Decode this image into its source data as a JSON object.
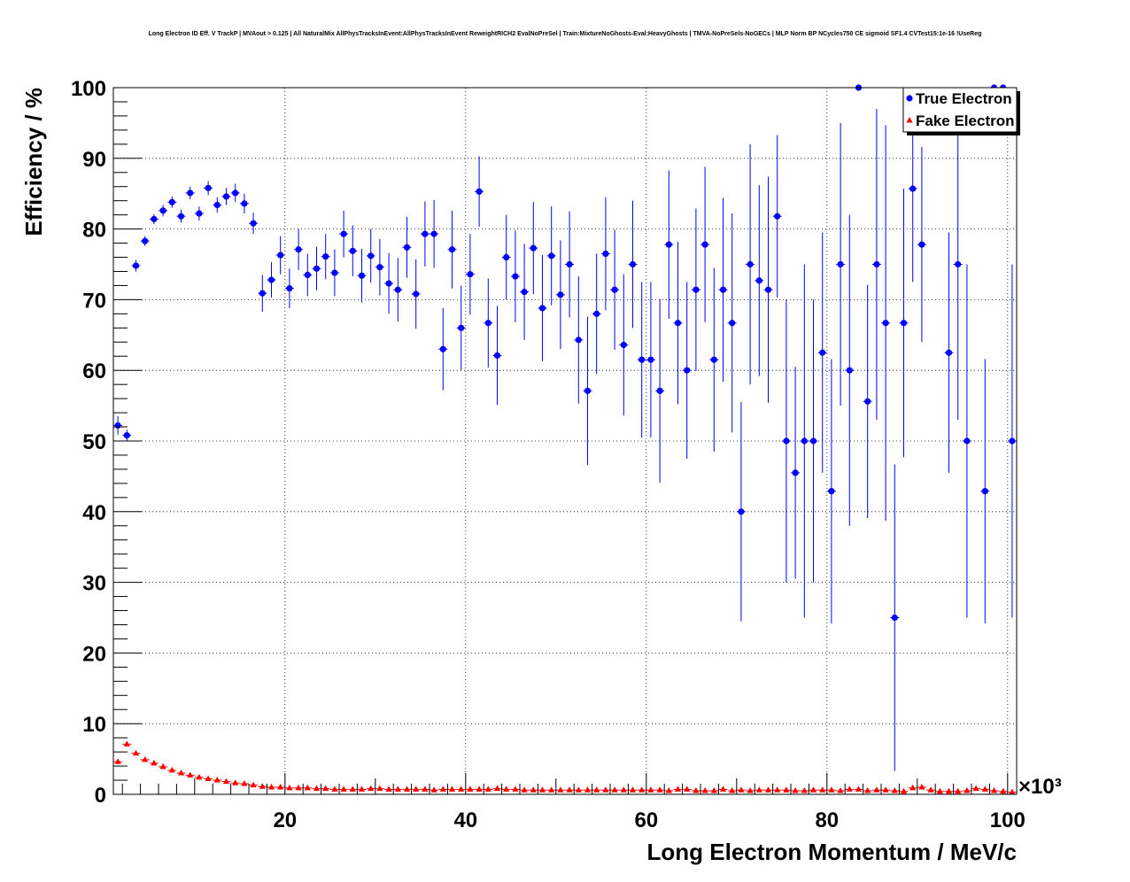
{
  "chart_data": {
    "type": "scatter",
    "title": "Long Electron ID Eff. V TrackP | MVAout > 0.125 | All NaturalMix AllPhysTracksInEvent:AllPhysTracksInEvent ReweightRICH2 EvalNoPreSel | Train:MixtureNoGhosts-Eval:HeavyGhosts | TMVA-NoPreSels-NoGECs | MLP Norm BP NCycles750 CE sigmoid SF1.4 CVTest15:1e-16 !UseReg",
    "xlabel": "Long Electron Momentum / MeV/c",
    "ylabel": "Efficiency / %",
    "x_multiplier": "×10³",
    "xlim": [
      1,
      101
    ],
    "ylim": [
      0,
      100
    ],
    "xticks": [
      20,
      40,
      60,
      80,
      100
    ],
    "yticks": [
      0,
      10,
      20,
      30,
      40,
      50,
      60,
      70,
      80,
      90,
      100
    ],
    "grid": true,
    "legend_position": "top-right",
    "series": [
      {
        "name": "True Electron",
        "color": "#0000ff",
        "marker": "circle",
        "points": [
          {
            "x": 1.5,
            "y": 52.2,
            "e": 1.3
          },
          {
            "x": 2.5,
            "y": 50.8,
            "e": 0.8
          },
          {
            "x": 3.5,
            "y": 74.8,
            "e": 0.8
          },
          {
            "x": 4.5,
            "y": 78.3,
            "e": 0.7
          },
          {
            "x": 5.5,
            "y": 81.4,
            "e": 0.7
          },
          {
            "x": 6.5,
            "y": 82.6,
            "e": 0.8
          },
          {
            "x": 7.5,
            "y": 83.8,
            "e": 0.8
          },
          {
            "x": 8.5,
            "y": 81.8,
            "e": 0.9
          },
          {
            "x": 9.5,
            "y": 85.1,
            "e": 0.9
          },
          {
            "x": 10.5,
            "y": 82.2,
            "e": 1.0
          },
          {
            "x": 11.5,
            "y": 85.8,
            "e": 1.0
          },
          {
            "x": 12.5,
            "y": 83.4,
            "e": 1.1
          },
          {
            "x": 13.5,
            "y": 84.6,
            "e": 1.2
          },
          {
            "x": 14.5,
            "y": 85.1,
            "e": 1.3
          },
          {
            "x": 15.5,
            "y": 83.6,
            "e": 1.4
          },
          {
            "x": 16.5,
            "y": 80.8,
            "e": 1.5
          },
          {
            "x": 17.5,
            "y": 70.9,
            "e": 2.6
          },
          {
            "x": 18.5,
            "y": 72.8,
            "e": 2.5
          },
          {
            "x": 19.5,
            "y": 76.3,
            "e": 2.7
          },
          {
            "x": 20.5,
            "y": 71.6,
            "e": 2.8
          },
          {
            "x": 21.5,
            "y": 77.1,
            "e": 2.9
          },
          {
            "x": 22.5,
            "y": 73.5,
            "e": 3.0
          },
          {
            "x": 23.5,
            "y": 74.4,
            "e": 3.1
          },
          {
            "x": 24.5,
            "y": 76.1,
            "e": 3.2
          },
          {
            "x": 25.5,
            "y": 73.8,
            "e": 3.3
          },
          {
            "x": 26.5,
            "y": 79.3,
            "e": 3.3
          },
          {
            "x": 27.5,
            "y": 76.9,
            "e": 3.6
          },
          {
            "x": 28.5,
            "y": 73.4,
            "e": 3.8
          },
          {
            "x": 29.5,
            "y": 76.2,
            "e": 3.8
          },
          {
            "x": 30.5,
            "y": 74.6,
            "e": 4.0
          },
          {
            "x": 31.5,
            "y": 72.3,
            "e": 4.3
          },
          {
            "x": 32.5,
            "y": 71.4,
            "e": 4.5
          },
          {
            "x": 33.5,
            "y": 77.4,
            "e": 4.3
          },
          {
            "x": 34.5,
            "y": 70.8,
            "e": 4.9
          },
          {
            "x": 35.5,
            "y": 79.3,
            "e": 4.6
          },
          {
            "x": 36.5,
            "y": 79.3,
            "e": 4.8
          },
          {
            "x": 37.5,
            "y": 63.0,
            "e": 5.8
          },
          {
            "x": 38.5,
            "y": 77.1,
            "e": 5.5
          },
          {
            "x": 39.5,
            "y": 66.0,
            "e": 6.0
          },
          {
            "x": 40.5,
            "y": 73.6,
            "e": 5.7
          },
          {
            "x": 41.5,
            "y": 85.3,
            "e": 5.0
          },
          {
            "x": 42.5,
            "y": 66.7,
            "e": 6.3
          },
          {
            "x": 43.5,
            "y": 62.1,
            "e": 7.0
          },
          {
            "x": 44.5,
            "y": 76.0,
            "e": 6.0
          },
          {
            "x": 45.5,
            "y": 73.3,
            "e": 6.5
          },
          {
            "x": 46.5,
            "y": 71.1,
            "e": 6.8
          },
          {
            "x": 47.5,
            "y": 77.3,
            "e": 6.5
          },
          {
            "x": 48.5,
            "y": 68.8,
            "e": 7.5
          },
          {
            "x": 49.5,
            "y": 76.2,
            "e": 7.0
          },
          {
            "x": 50.5,
            "y": 70.7,
            "e": 7.7
          },
          {
            "x": 51.5,
            "y": 75.0,
            "e": 7.5
          },
          {
            "x": 52.5,
            "y": 64.3,
            "e": 9.0
          },
          {
            "x": 53.5,
            "y": 57.1,
            "e": 10.5
          },
          {
            "x": 54.5,
            "y": 68.0,
            "e": 8.5
          },
          {
            "x": 55.5,
            "y": 76.5,
            "e": 8.0
          },
          {
            "x": 56.5,
            "y": 71.4,
            "e": 8.5
          },
          {
            "x": 57.5,
            "y": 63.6,
            "e": 10.0
          },
          {
            "x": 58.5,
            "y": 75.0,
            "e": 9.0
          },
          {
            "x": 59.5,
            "y": 61.5,
            "e": 11.0
          },
          {
            "x": 60.5,
            "y": 61.5,
            "e": 11.0
          },
          {
            "x": 61.5,
            "y": 57.1,
            "e": 13.0
          },
          {
            "x": 62.5,
            "y": 77.8,
            "e": 10.5
          },
          {
            "x": 63.5,
            "y": 66.7,
            "e": 11.5
          },
          {
            "x": 64.5,
            "y": 60.0,
            "e": 12.5
          },
          {
            "x": 65.5,
            "y": 71.4,
            "e": 11.5
          },
          {
            "x": 66.5,
            "y": 77.8,
            "e": 11.0
          },
          {
            "x": 67.5,
            "y": 61.5,
            "e": 13.0
          },
          {
            "x": 68.5,
            "y": 71.4,
            "e": 13.0
          },
          {
            "x": 69.5,
            "y": 66.7,
            "e": 15.5
          },
          {
            "x": 70.5,
            "y": 40.0,
            "e": 15.5
          },
          {
            "x": 71.5,
            "y": 75.0,
            "e": 17.0
          },
          {
            "x": 72.5,
            "y": 72.7,
            "e": 13.5
          },
          {
            "x": 73.5,
            "y": 71.4,
            "e": 16.0
          },
          {
            "x": 74.5,
            "y": 81.8,
            "e": 11.5
          },
          {
            "x": 75.5,
            "y": 50.0,
            "e": 20.0
          },
          {
            "x": 76.5,
            "y": 45.5,
            "e": 15.0
          },
          {
            "x": 77.5,
            "y": 50.0,
            "e": 25.0
          },
          {
            "x": 78.5,
            "y": 50.0,
            "e": 20.0
          },
          {
            "x": 79.5,
            "y": 62.5,
            "e": 17.0
          },
          {
            "x": 80.5,
            "y": 42.9,
            "e": 18.7
          },
          {
            "x": 81.5,
            "y": 75.0,
            "e": 20.0
          },
          {
            "x": 82.5,
            "y": 60.0,
            "e": 22.0
          },
          {
            "x": 83.5,
            "y": 100.0,
            "e": 0
          },
          {
            "x": 84.5,
            "y": 55.6,
            "e": 16.5
          },
          {
            "x": 85.5,
            "y": 75.0,
            "e": 22.0
          },
          {
            "x": 86.5,
            "y": 66.7,
            "e": 28.0
          },
          {
            "x": 87.5,
            "y": 25.0,
            "e": 21.7
          },
          {
            "x": 88.5,
            "y": 66.7,
            "e": 19.0
          },
          {
            "x": 89.5,
            "y": 85.7,
            "e": 13.2
          },
          {
            "x": 90.5,
            "y": 77.8,
            "e": 13.8
          },
          {
            "x": 93.5,
            "y": 62.5,
            "e": 17.0
          },
          {
            "x": 94.5,
            "y": 75.0,
            "e": 22.0
          },
          {
            "x": 95.5,
            "y": 50.0,
            "e": 25.0
          },
          {
            "x": 97.5,
            "y": 42.9,
            "e": 18.7
          },
          {
            "x": 98.5,
            "y": 100.0,
            "e": 0
          },
          {
            "x": 99.5,
            "y": 100.0,
            "e": 0
          },
          {
            "x": 100.5,
            "y": 50.0,
            "e": 25.0
          }
        ]
      },
      {
        "name": "Fake Electron",
        "color": "#ff0000",
        "marker": "triangle",
        "points": [
          {
            "x": 1.5,
            "y": 4.6
          },
          {
            "x": 2.5,
            "y": 7.1
          },
          {
            "x": 3.5,
            "y": 5.8
          },
          {
            "x": 4.5,
            "y": 4.9
          },
          {
            "x": 5.5,
            "y": 4.4
          },
          {
            "x": 6.5,
            "y": 3.9
          },
          {
            "x": 7.5,
            "y": 3.4
          },
          {
            "x": 8.5,
            "y": 3.0
          },
          {
            "x": 9.5,
            "y": 2.7
          },
          {
            "x": 10.5,
            "y": 2.4
          },
          {
            "x": 11.5,
            "y": 2.2
          },
          {
            "x": 12.5,
            "y": 2.0
          },
          {
            "x": 13.5,
            "y": 1.8
          },
          {
            "x": 14.5,
            "y": 1.6
          },
          {
            "x": 15.5,
            "y": 1.5
          },
          {
            "x": 16.5,
            "y": 1.3
          },
          {
            "x": 17.5,
            "y": 1.1
          },
          {
            "x": 18.5,
            "y": 1.0
          },
          {
            "x": 19.5,
            "y": 1.0
          },
          {
            "x": 20.5,
            "y": 0.9
          },
          {
            "x": 21.5,
            "y": 0.9
          },
          {
            "x": 22.5,
            "y": 0.9
          },
          {
            "x": 23.5,
            "y": 0.8
          },
          {
            "x": 24.5,
            "y": 0.8
          },
          {
            "x": 25.5,
            "y": 0.7
          },
          {
            "x": 26.5,
            "y": 0.7
          },
          {
            "x": 27.5,
            "y": 0.7
          },
          {
            "x": 28.5,
            "y": 0.7
          },
          {
            "x": 29.5,
            "y": 0.8
          },
          {
            "x": 30.5,
            "y": 0.8
          },
          {
            "x": 31.5,
            "y": 0.7
          },
          {
            "x": 32.5,
            "y": 0.7
          },
          {
            "x": 33.5,
            "y": 0.7
          },
          {
            "x": 34.5,
            "y": 0.7
          },
          {
            "x": 35.5,
            "y": 0.7
          },
          {
            "x": 36.5,
            "y": 0.6
          },
          {
            "x": 37.5,
            "y": 0.7
          },
          {
            "x": 38.5,
            "y": 0.7
          },
          {
            "x": 39.5,
            "y": 0.7
          },
          {
            "x": 40.5,
            "y": 0.7
          },
          {
            "x": 41.5,
            "y": 0.7
          },
          {
            "x": 42.5,
            "y": 0.7
          },
          {
            "x": 43.5,
            "y": 0.8
          },
          {
            "x": 44.5,
            "y": 0.7
          },
          {
            "x": 45.5,
            "y": 0.7
          },
          {
            "x": 46.5,
            "y": 0.6
          },
          {
            "x": 47.5,
            "y": 0.6
          },
          {
            "x": 48.5,
            "y": 0.6
          },
          {
            "x": 49.5,
            "y": 0.6
          },
          {
            "x": 50.5,
            "y": 0.6
          },
          {
            "x": 51.5,
            "y": 0.6
          },
          {
            "x": 52.5,
            "y": 0.6
          },
          {
            "x": 53.5,
            "y": 0.6
          },
          {
            "x": 54.5,
            "y": 0.6
          },
          {
            "x": 55.5,
            "y": 0.6
          },
          {
            "x": 56.5,
            "y": 0.6
          },
          {
            "x": 57.5,
            "y": 0.6
          },
          {
            "x": 58.5,
            "y": 0.6
          },
          {
            "x": 59.5,
            "y": 0.6
          },
          {
            "x": 60.5,
            "y": 0.6
          },
          {
            "x": 61.5,
            "y": 0.6
          },
          {
            "x": 62.5,
            "y": 0.5
          },
          {
            "x": 63.5,
            "y": 0.7
          },
          {
            "x": 64.5,
            "y": 0.7
          },
          {
            "x": 65.5,
            "y": 0.5
          },
          {
            "x": 66.5,
            "y": 0.5
          },
          {
            "x": 67.5,
            "y": 0.5
          },
          {
            "x": 68.5,
            "y": 0.7
          },
          {
            "x": 69.5,
            "y": 0.5
          },
          {
            "x": 70.5,
            "y": 0.6
          },
          {
            "x": 71.5,
            "y": 0.5
          },
          {
            "x": 72.5,
            "y": 0.6
          },
          {
            "x": 73.5,
            "y": 0.6
          },
          {
            "x": 74.5,
            "y": 0.6
          },
          {
            "x": 75.5,
            "y": 0.6
          },
          {
            "x": 76.5,
            "y": 0.5
          },
          {
            "x": 77.5,
            "y": 0.5
          },
          {
            "x": 78.5,
            "y": 0.6
          },
          {
            "x": 79.5,
            "y": 0.6
          },
          {
            "x": 80.5,
            "y": 0.6
          },
          {
            "x": 81.5,
            "y": 0.5
          },
          {
            "x": 82.5,
            "y": 0.7
          },
          {
            "x": 83.5,
            "y": 0.7
          },
          {
            "x": 84.5,
            "y": 0.5
          },
          {
            "x": 85.5,
            "y": 0.6
          },
          {
            "x": 86.5,
            "y": 0.6
          },
          {
            "x": 87.5,
            "y": 0.5
          },
          {
            "x": 88.5,
            "y": 0.4
          },
          {
            "x": 89.5,
            "y": 0.9
          },
          {
            "x": 90.5,
            "y": 1.0
          },
          {
            "x": 91.5,
            "y": 0.6
          },
          {
            "x": 92.5,
            "y": 0.4
          },
          {
            "x": 93.5,
            "y": 0.4
          },
          {
            "x": 94.5,
            "y": 0.4
          },
          {
            "x": 95.5,
            "y": 0.5
          },
          {
            "x": 96.5,
            "y": 0.8
          },
          {
            "x": 97.5,
            "y": 0.7
          },
          {
            "x": 98.5,
            "y": 0.5
          },
          {
            "x": 99.5,
            "y": 0.4
          },
          {
            "x": 100.5,
            "y": 0.3
          }
        ]
      }
    ]
  }
}
